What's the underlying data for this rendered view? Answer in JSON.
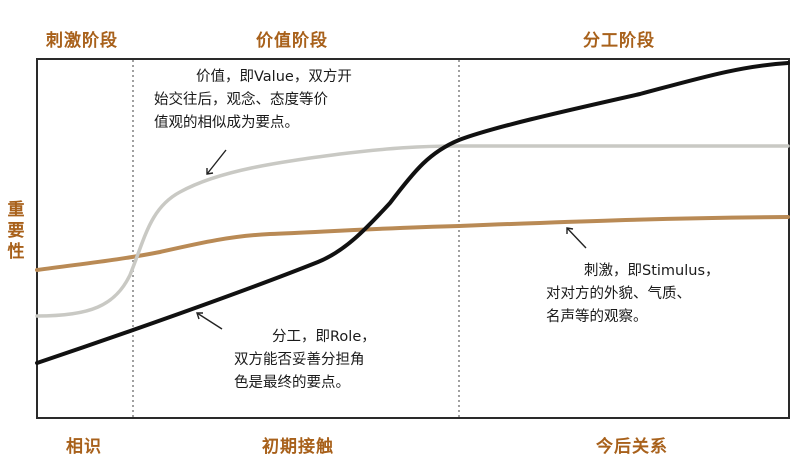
{
  "headers": {
    "stimulus_phase": "刺激阶段",
    "value_phase": "价值阶段",
    "role_phase": "分工阶段"
  },
  "footers": {
    "acquaintance": "相识",
    "early_contact": "初期接触",
    "future_relation": "今后关系"
  },
  "y_label": "重要性",
  "notes": {
    "value": {
      "line1": "价值，即Value，双方开",
      "line2": "始交往后，观念、态度等价",
      "line3": "值观的相似成为要点。"
    },
    "role": {
      "line1": "分工，即Role，",
      "line2": "双方能否妥善分担角",
      "line3": "色是最终的要点。"
    },
    "stimulus": {
      "line1": "刺激，即Stimulus，",
      "line2": "对对方的外貌、气质、",
      "line3": "名声等的观察。"
    }
  },
  "colors": {
    "stimulus_curve": "#b98a55",
    "value_curve": "#c9c9c4",
    "role_curve": "#111111",
    "label": "#a8611b"
  }
}
